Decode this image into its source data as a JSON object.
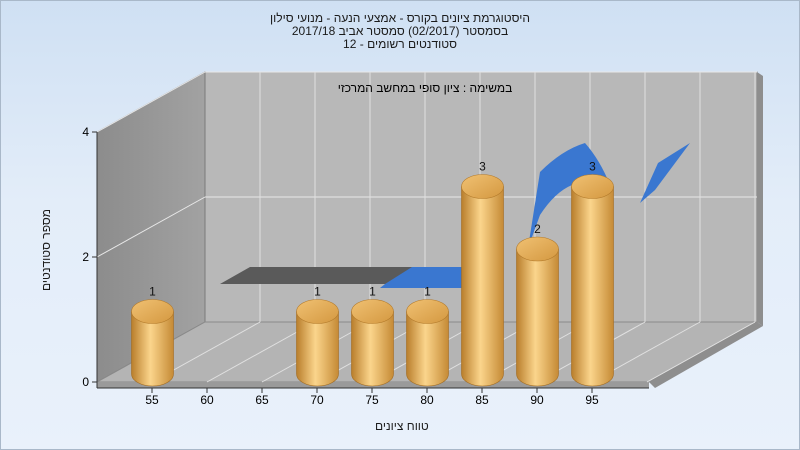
{
  "title_lines": [
    "היסטוגרמת ציונים בקורס - אמצעי הנעה - מנועי סילון",
    "בסמסטר  (02/2017)  סמסטר אביב 2017/18",
    "סטודנטים רשומים - 12"
  ],
  "chart_data": {
    "type": "bar",
    "annotation": "במשימה : ציון סופי במחשב המרכזי",
    "categories": [
      "55",
      "60",
      "65",
      "70",
      "75",
      "80",
      "85",
      "90",
      "95"
    ],
    "values": [
      1,
      0,
      0,
      1,
      1,
      1,
      3,
      2,
      3
    ],
    "data_labels": [
      "1",
      "",
      "",
      "1",
      "1",
      "1",
      "3",
      "2",
      "3"
    ],
    "ylabel": "מספר סטודנטים",
    "xlabel": "טווח ציונים",
    "ylim": [
      0,
      4
    ],
    "yticks": [
      "0",
      "2",
      "4"
    ],
    "grid": true,
    "bar_color": "#e6a84a",
    "ribbon_color": "#3a77d0",
    "ribbon_shadow_color": "#5a5a5a"
  }
}
